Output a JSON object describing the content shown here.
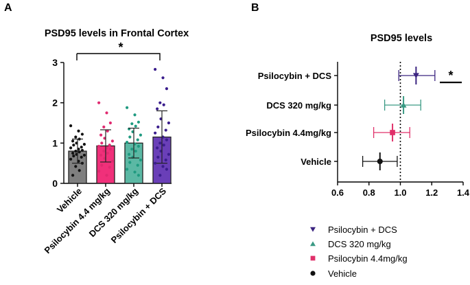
{
  "panel_labels": {
    "a": "A",
    "b": "B"
  },
  "colors": {
    "vehicle": "#7f7f7f",
    "psilocybin": "#f0307a",
    "dcs": "#5bb8a4",
    "combo": "#6a3fb8",
    "vehicle_marker": "#111111",
    "psilocybin_marker": "#e0306a",
    "dcs_marker": "#3a9a84",
    "combo_marker": "#3b2480",
    "point_vehicle": "#111111",
    "point_psilocybin": "#e02a70",
    "point_dcs": "#1f9a80",
    "point_combo": "#3a1d8c"
  },
  "chart_data": [
    {
      "type": "bar",
      "title": "PSD95 levels in Frontal Cortex",
      "xlabel": "",
      "ylabel": "",
      "ylim": [
        0,
        3
      ],
      "yticks": [
        0,
        1,
        2,
        3
      ],
      "categories": [
        "Vehicle",
        "Psilocybin 4.4 mg/kg",
        "DCS 320 mg/kg",
        "Psilocybin + DCS"
      ],
      "values": [
        0.8,
        0.93,
        1.0,
        1.15
      ],
      "sd": [
        0.3,
        0.4,
        0.37,
        0.65
      ],
      "points": [
        [
          1.43,
          1.3,
          1.22,
          1.15,
          1.1,
          1.05,
          1.0,
          0.97,
          0.95,
          0.9,
          0.88,
          0.85,
          0.82,
          0.8,
          0.78,
          0.75,
          0.72,
          0.7,
          0.68,
          0.65,
          0.6,
          0.55,
          0.5,
          0.42,
          0.32,
          0.2
        ],
        [
          2.0,
          1.75,
          1.5,
          1.4,
          1.3,
          1.2,
          1.12,
          1.05,
          1.0,
          0.95,
          0.92,
          0.88,
          0.85,
          0.8,
          0.75,
          0.7,
          0.62,
          0.55,
          0.45,
          0.4,
          0.3,
          0.2
        ],
        [
          1.88,
          1.7,
          1.52,
          1.48,
          1.42,
          1.35,
          1.28,
          1.2,
          1.15,
          1.08,
          1.02,
          0.98,
          0.92,
          0.85,
          0.8,
          0.72,
          0.65,
          0.58,
          0.52,
          0.45,
          0.35,
          0.28,
          0.2
        ],
        [
          2.83,
          2.62,
          2.35,
          2.0,
          1.95,
          1.85,
          1.6,
          1.5,
          1.4,
          1.32,
          1.25,
          1.15,
          1.08,
          1.0,
          0.95,
          0.88,
          0.8,
          0.72,
          0.65,
          0.58,
          0.5,
          0.42,
          0.35,
          0.2
        ]
      ],
      "significance": {
        "label": "*",
        "from": "Vehicle",
        "to": "Psilocybin + DCS"
      }
    },
    {
      "type": "scatter",
      "title": "PSD95 levels",
      "xlabel": "",
      "ylabel": "",
      "xlim": [
        0.6,
        1.4
      ],
      "xticks": [
        0.6,
        0.8,
        1.0,
        1.2,
        1.4
      ],
      "xtick_labels": [
        "0.6",
        "0.8",
        "1.0",
        "1.2",
        "1.4"
      ],
      "reference_line": 1.0,
      "categories": [
        "Psilocybin + DCS",
        "DCS 320 mg/kg",
        "Psilocybin 4.4mg/kg",
        "Vehicle"
      ],
      "means": [
        1.1,
        1.02,
        0.95,
        0.87
      ],
      "lower": [
        0.99,
        0.9,
        0.83,
        0.76
      ],
      "upper": [
        1.22,
        1.13,
        1.06,
        0.98
      ],
      "markers": [
        "triangle-down",
        "triangle-up",
        "square",
        "circle"
      ],
      "significance": {
        "label": "*",
        "row": "Psilocybin + DCS"
      },
      "legend": {
        "position": "bottom",
        "entries": [
          "Psilocybin + DCS",
          "DCS 320 mg/kg",
          "Psilocybin 4.4mg/kg",
          "Vehicle"
        ]
      }
    }
  ]
}
